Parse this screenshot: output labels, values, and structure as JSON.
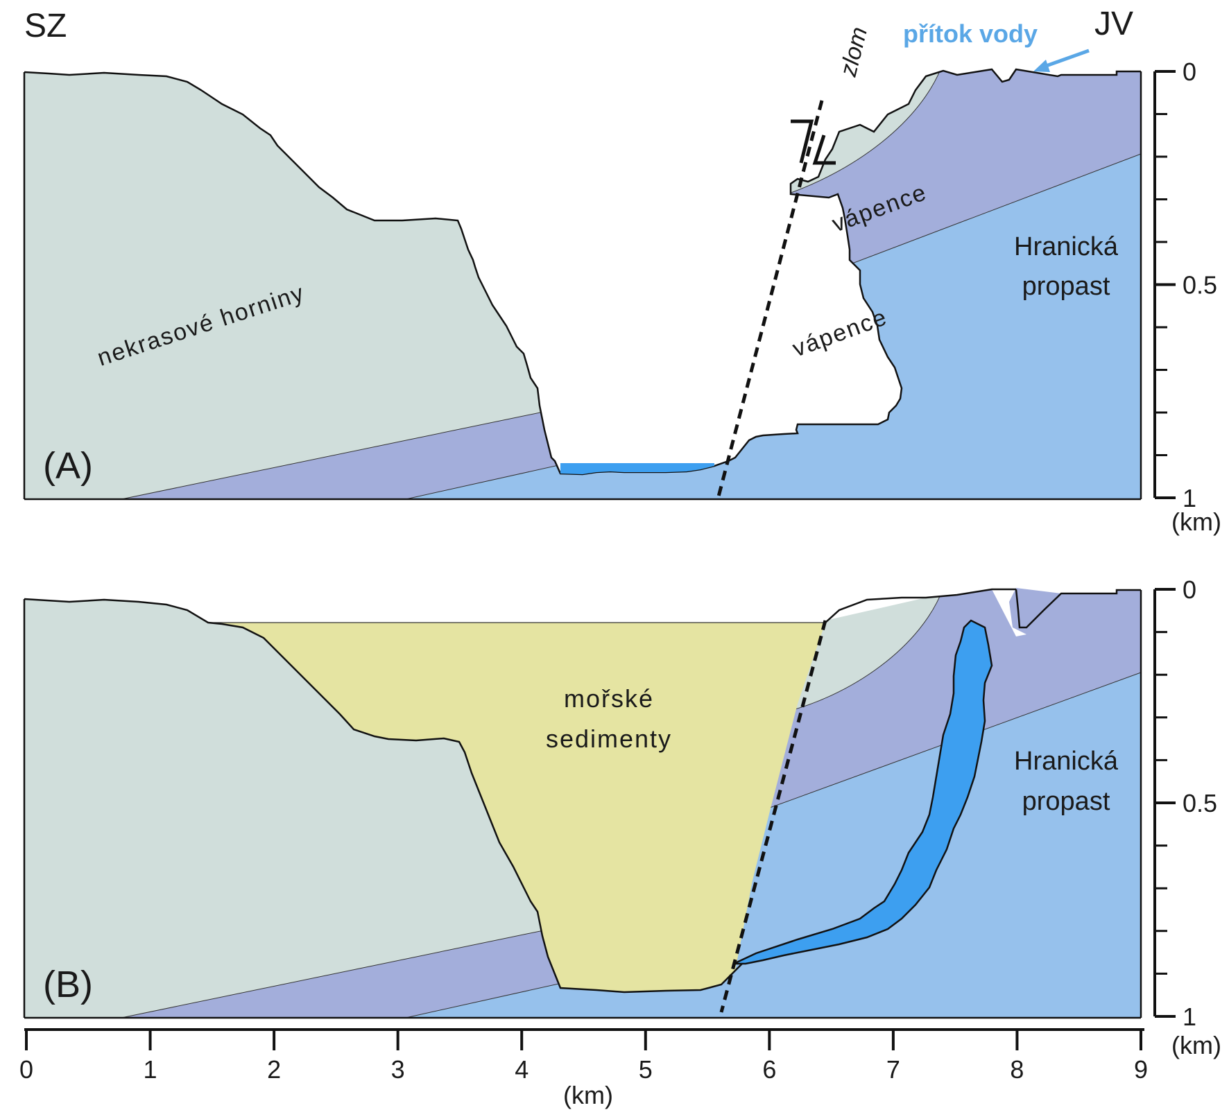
{
  "directions": {
    "left": "SZ",
    "right": "JV"
  },
  "panel_a": {
    "label": "(A)",
    "fault_label": "zlom",
    "inflow_label": "přítok vody",
    "rock_left": "nekrasové horniny",
    "limestone_upper": "vápence",
    "limestone_lower": "vápence",
    "abyss_line1": "Hranická",
    "abyss_line2": "propast",
    "depth_ticks": [
      "0",
      "0.5",
      "1"
    ],
    "depth_unit": "(km)"
  },
  "panel_b": {
    "label": "(B)",
    "sediment_line1": "mořské",
    "sediment_line2": "sedimenty",
    "abyss_line1": "Hranická",
    "abyss_line2": "propast",
    "depth_ticks": [
      "0",
      "0.5",
      "1"
    ],
    "depth_unit": "(km)"
  },
  "distance_axis": {
    "ticks": [
      "0",
      "1",
      "2",
      "3",
      "4",
      "5",
      "6",
      "7",
      "8",
      "9"
    ],
    "unit": "(km)"
  },
  "colors": {
    "nonkarst_rock": "#d0dedb",
    "limestone_upper": "#a3aedb",
    "limestone_lower": "#96c1ec",
    "water": "#3d9ff0",
    "inflow": "#5aa7e6",
    "sediment": "#e5e4a2",
    "outline": "#111111"
  }
}
